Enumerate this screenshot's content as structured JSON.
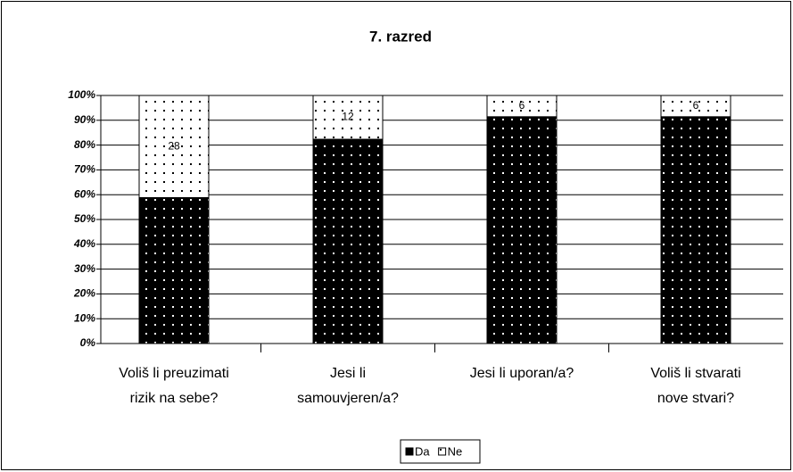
{
  "chart_data": {
    "type": "stacked_percent_bar",
    "title": "7. razred",
    "categories": [
      "Voliš li preuzimati\nrizik na sebe?",
      "Jesi li\nsamouvjeren/a?",
      "Jesi li uporan/a?",
      "Voliš li stvarati\nnove stvari?"
    ],
    "series": [
      {
        "name": "Da",
        "color": "#000000",
        "values": [
          40,
          56,
          64,
          64
        ]
      },
      {
        "name": "Ne",
        "color": "#ffffff",
        "values": [
          28,
          12,
          6,
          6
        ],
        "value_labels": [
          "28",
          "12",
          "6",
          "6"
        ]
      }
    ],
    "ylim": [
      0,
      100
    ],
    "yticks": [
      {
        "value": 0,
        "label": "0%"
      },
      {
        "value": 10,
        "label": "10%"
      },
      {
        "value": 20,
        "label": "20%"
      },
      {
        "value": 30,
        "label": "30%"
      },
      {
        "value": 40,
        "label": "40%"
      },
      {
        "value": 50,
        "label": "50%"
      },
      {
        "value": 60,
        "label": "60%"
      },
      {
        "value": 70,
        "label": "70%"
      },
      {
        "value": 80,
        "label": "80%"
      },
      {
        "value": 90,
        "label": "90%"
      },
      {
        "value": 100,
        "label": "100%"
      }
    ],
    "grid": true,
    "legend": "bottom"
  }
}
